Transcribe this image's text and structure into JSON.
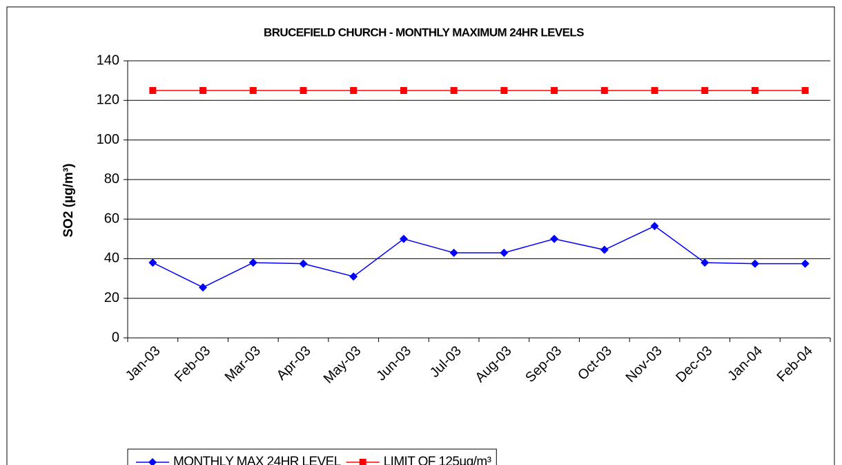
{
  "chart_data": {
    "type": "line",
    "title": "BRUCEFIELD CHURCH - MONTHLY MAXIMUM 24HR LEVELS",
    "y_label": "SO2 (µg/m³)",
    "categories": [
      "Jan-03",
      "Feb-03",
      "Mar-03",
      "Apr-03",
      "May-03",
      "Jun-03",
      "Jul-03",
      "Aug-03",
      "Sep-03",
      "Oct-03",
      "Nov-03",
      "Dec-03",
      "Jan-04",
      "Feb-04"
    ],
    "series": [
      {
        "name": "MONTHLY MAX 24HR LEVEL",
        "color": "#0000ff",
        "marker": "diamond",
        "values": [
          38,
          25.5,
          38,
          37.5,
          31,
          50,
          43,
          43,
          50,
          44.5,
          56.5,
          38,
          37.5,
          37.5
        ]
      },
      {
        "name": "LIMIT OF 125µg/m³",
        "color": "#ff0000",
        "marker": "square",
        "values": [
          125,
          125,
          125,
          125,
          125,
          125,
          125,
          125,
          125,
          125,
          125,
          125,
          125,
          125
        ]
      }
    ],
    "ylim": [
      0,
      140
    ],
    "yticks": [
      0,
      20,
      40,
      60,
      80,
      100,
      120,
      140
    ],
    "grid": true,
    "legend": "bottom"
  }
}
